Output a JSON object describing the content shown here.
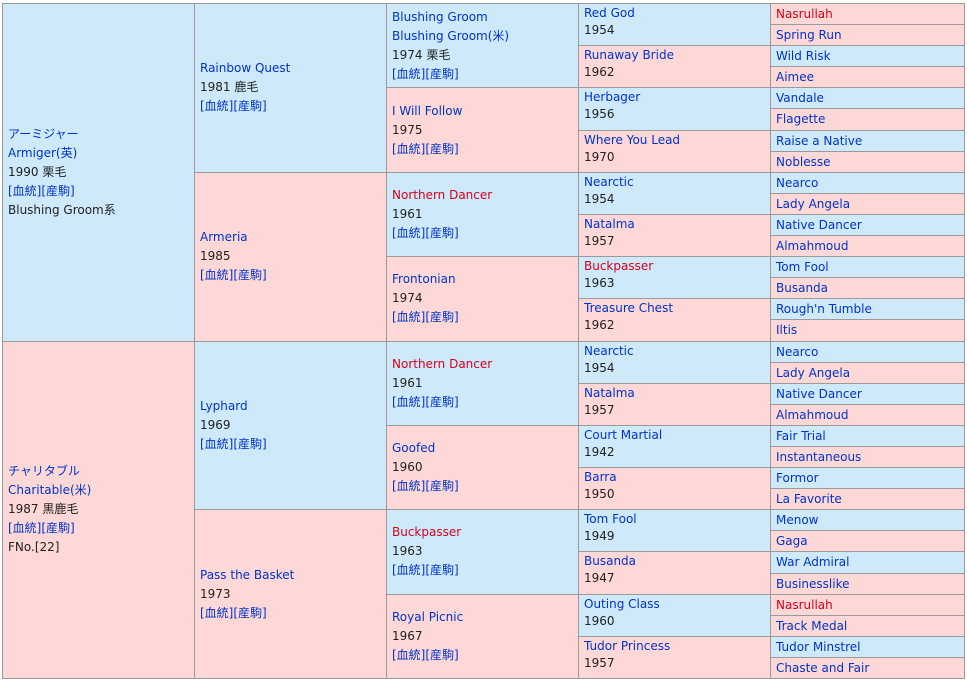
{
  "gen1": [
    {
      "side": "m",
      "lines": [
        {
          "t": "アーミジャー",
          "c": "blue"
        },
        {
          "t": "Armiger(英)",
          "c": "blue"
        },
        {
          "t": "1990 栗毛",
          "c": "txt"
        },
        {
          "t": "[血統][産駒]",
          "c": "blue"
        },
        {
          "t": "Blushing Groom系",
          "c": "txt"
        }
      ]
    },
    {
      "side": "f",
      "lines": [
        {
          "t": "チャリタブル",
          "c": "blue"
        },
        {
          "t": "Charitable(米)",
          "c": "blue"
        },
        {
          "t": "1987 黒鹿毛",
          "c": "txt"
        },
        {
          "t": "[血統][産駒]",
          "c": "blue"
        },
        {
          "t": "FNo.[22]",
          "c": "txt"
        }
      ]
    }
  ],
  "gen2": [
    {
      "side": "m",
      "lines": [
        {
          "t": "Rainbow Quest",
          "c": "blue"
        },
        {
          "t": "1981 鹿毛",
          "c": "txt"
        },
        {
          "t": "[血統][産駒]",
          "c": "blue"
        }
      ]
    },
    {
      "side": "f",
      "lines": [
        {
          "t": "Armeria",
          "c": "blue"
        },
        {
          "t": "1985",
          "c": "txt"
        },
        {
          "t": "[血統][産駒]",
          "c": "blue"
        }
      ]
    },
    {
      "side": "m",
      "lines": [
        {
          "t": "Lyphard",
          "c": "blue"
        },
        {
          "t": "1969",
          "c": "txt"
        },
        {
          "t": "[血統][産駒]",
          "c": "blue"
        }
      ]
    },
    {
      "side": "f",
      "lines": [
        {
          "t": "Pass the Basket",
          "c": "blue"
        },
        {
          "t": "1973",
          "c": "txt"
        },
        {
          "t": "[血統][産駒]",
          "c": "blue"
        }
      ]
    }
  ],
  "gen3": [
    {
      "side": "m",
      "lines": [
        {
          "t": "Blushing Groom",
          "c": "blue"
        },
        {
          "t": "Blushing Groom(米)",
          "c": "blue"
        },
        {
          "t": "1974 栗毛",
          "c": "txt"
        },
        {
          "t": "[血統][産駒]",
          "c": "blue"
        }
      ]
    },
    {
      "side": "f",
      "lines": [
        {
          "t": "I Will Follow",
          "c": "blue"
        },
        {
          "t": "1975",
          "c": "txt"
        },
        {
          "t": "[血統][産駒]",
          "c": "blue"
        }
      ]
    },
    {
      "side": "m",
      "lines": [
        {
          "t": "Northern Dancer",
          "c": "red"
        },
        {
          "t": "1961",
          "c": "txt"
        },
        {
          "t": "[血統][産駒]",
          "c": "blue"
        }
      ]
    },
    {
      "side": "f",
      "lines": [
        {
          "t": "Frontonian",
          "c": "blue"
        },
        {
          "t": "1974",
          "c": "txt"
        },
        {
          "t": "[血統][産駒]",
          "c": "blue"
        }
      ]
    },
    {
      "side": "m",
      "lines": [
        {
          "t": "Northern Dancer",
          "c": "red"
        },
        {
          "t": "1961",
          "c": "txt"
        },
        {
          "t": "[血統][産駒]",
          "c": "blue"
        }
      ]
    },
    {
      "side": "f",
      "lines": [
        {
          "t": "Goofed",
          "c": "blue"
        },
        {
          "t": "1960",
          "c": "txt"
        },
        {
          "t": "[血統][産駒]",
          "c": "blue"
        }
      ]
    },
    {
      "side": "m",
      "lines": [
        {
          "t": "Buckpasser",
          "c": "red"
        },
        {
          "t": "1963",
          "c": "txt"
        },
        {
          "t": "[血統][産駒]",
          "c": "blue"
        }
      ]
    },
    {
      "side": "f",
      "lines": [
        {
          "t": "Royal Picnic",
          "c": "blue"
        },
        {
          "t": "1967",
          "c": "txt"
        },
        {
          "t": "[血統][産駒]",
          "c": "blue"
        }
      ]
    }
  ],
  "gen4": [
    {
      "side": "m",
      "name": "Red God",
      "nc": "blue",
      "year": "1954"
    },
    {
      "side": "f",
      "name": "Runaway Bride",
      "nc": "blue",
      "year": "1962"
    },
    {
      "side": "m",
      "name": "Herbager",
      "nc": "blue",
      "year": "1956"
    },
    {
      "side": "f",
      "name": "Where You Lead",
      "nc": "blue",
      "year": "1970"
    },
    {
      "side": "m",
      "name": "Nearctic",
      "nc": "blue",
      "year": "1954"
    },
    {
      "side": "f",
      "name": "Natalma",
      "nc": "blue",
      "year": "1957"
    },
    {
      "side": "m",
      "name": "Buckpasser",
      "nc": "red",
      "year": "1963"
    },
    {
      "side": "f",
      "name": "Treasure Chest",
      "nc": "blue",
      "year": "1962"
    },
    {
      "side": "m",
      "name": "Nearctic",
      "nc": "blue",
      "year": "1954"
    },
    {
      "side": "f",
      "name": "Natalma",
      "nc": "blue",
      "year": "1957"
    },
    {
      "side": "m",
      "name": "Court Martial",
      "nc": "blue",
      "year": "1942"
    },
    {
      "side": "f",
      "name": "Barra",
      "nc": "blue",
      "year": "1950"
    },
    {
      "side": "m",
      "name": "Tom Fool",
      "nc": "blue",
      "year": "1949"
    },
    {
      "side": "f",
      "name": "Busanda",
      "nc": "blue",
      "year": "1947"
    },
    {
      "side": "m",
      "name": "Outing Class",
      "nc": "blue",
      "year": "1960"
    },
    {
      "side": "f",
      "name": "Tudor Princess",
      "nc": "blue",
      "year": "1957"
    }
  ],
  "gen5": [
    {
      "side": "f",
      "name": "Nasrullah",
      "nc": "red"
    },
    {
      "side": "f",
      "name": "Spring Run",
      "nc": "blue"
    },
    {
      "side": "m",
      "name": "Wild Risk",
      "nc": "blue"
    },
    {
      "side": "f",
      "name": "Aimee",
      "nc": "blue"
    },
    {
      "side": "m",
      "name": "Vandale",
      "nc": "blue"
    },
    {
      "side": "f",
      "name": "Flagette",
      "nc": "blue"
    },
    {
      "side": "m",
      "name": "Raise a Native",
      "nc": "blue"
    },
    {
      "side": "f",
      "name": "Noblesse",
      "nc": "blue"
    },
    {
      "side": "m",
      "name": "Nearco",
      "nc": "blue"
    },
    {
      "side": "f",
      "name": "Lady Angela",
      "nc": "blue"
    },
    {
      "side": "m",
      "name": "Native Dancer",
      "nc": "blue"
    },
    {
      "side": "f",
      "name": "Almahmoud",
      "nc": "blue"
    },
    {
      "side": "m",
      "name": "Tom Fool",
      "nc": "blue"
    },
    {
      "side": "f",
      "name": "Busanda",
      "nc": "blue"
    },
    {
      "side": "m",
      "name": "Rough'n Tumble",
      "nc": "blue"
    },
    {
      "side": "f",
      "name": "Iltis",
      "nc": "blue"
    },
    {
      "side": "m",
      "name": "Nearco",
      "nc": "blue"
    },
    {
      "side": "f",
      "name": "Lady Angela",
      "nc": "blue"
    },
    {
      "side": "m",
      "name": "Native Dancer",
      "nc": "blue"
    },
    {
      "side": "f",
      "name": "Almahmoud",
      "nc": "blue"
    },
    {
      "side": "m",
      "name": "Fair Trial",
      "nc": "blue"
    },
    {
      "side": "f",
      "name": "Instantaneous",
      "nc": "blue"
    },
    {
      "side": "m",
      "name": "Formor",
      "nc": "blue"
    },
    {
      "side": "f",
      "name": "La Favorite",
      "nc": "blue"
    },
    {
      "side": "m",
      "name": "Menow",
      "nc": "blue"
    },
    {
      "side": "f",
      "name": "Gaga",
      "nc": "blue"
    },
    {
      "side": "m",
      "name": "War Admiral",
      "nc": "blue"
    },
    {
      "side": "f",
      "name": "Businesslike",
      "nc": "blue"
    },
    {
      "side": "f",
      "name": "Nasrullah",
      "nc": "red"
    },
    {
      "side": "f",
      "name": "Track Medal",
      "nc": "blue"
    },
    {
      "side": "m",
      "name": "Tudor Minstrel",
      "nc": "blue"
    },
    {
      "side": "f",
      "name": "Chaste and Fair",
      "nc": "blue"
    }
  ]
}
